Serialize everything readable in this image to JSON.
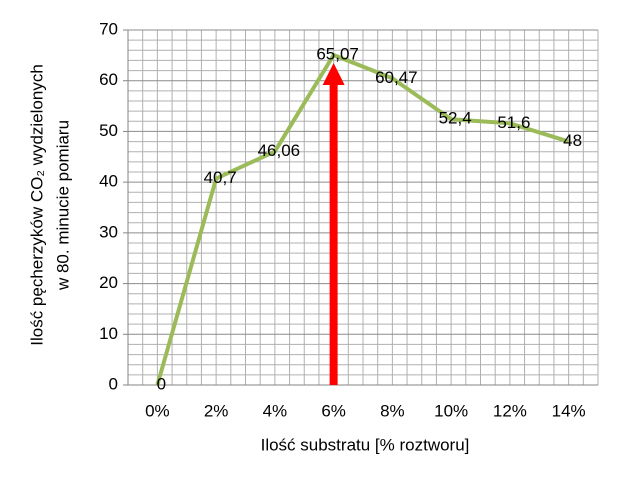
{
  "chart_data": {
    "type": "line",
    "x_label": "Ilość substratu [% roztworu]",
    "y_label": [
      "Ilość pęcherzyków CO₂ wydzielonych",
      "w 80. minucie pomiaru"
    ],
    "categories": [
      "0%",
      "2%",
      "4%",
      "6%",
      "8%",
      "10%",
      "12%",
      "14%"
    ],
    "values": [
      0,
      40.7,
      46.06,
      65.07,
      60.47,
      52.4,
      51.6,
      48
    ],
    "value_labels": [
      "0",
      "40,7",
      "46,06",
      "65,07",
      "60,47",
      "52,4",
      "51,6",
      "48"
    ],
    "color": "#9bbb59",
    "ylim": [
      0,
      70
    ],
    "yticks": [
      0,
      10,
      20,
      30,
      40,
      50,
      60,
      70
    ],
    "grid": true,
    "arrow_color": "#ff0000"
  }
}
